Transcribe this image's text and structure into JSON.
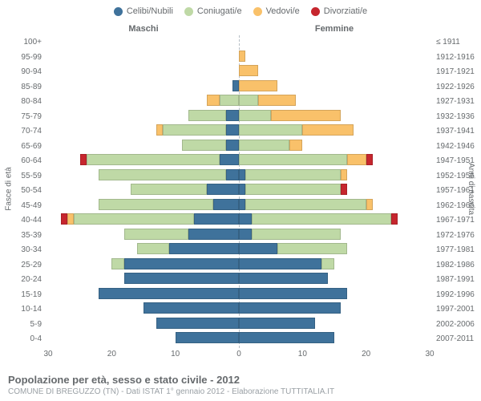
{
  "legend": {
    "items": [
      {
        "label": "Celibi/Nubili",
        "color": "#3f729b"
      },
      {
        "label": "Coniugati/e",
        "color": "#bfd9a6"
      },
      {
        "label": "Vedovi/e",
        "color": "#f9c16a"
      },
      {
        "label": "Divorziati/e",
        "color": "#c6262e"
      }
    ]
  },
  "headers": {
    "male": "Maschi",
    "female": "Femmine"
  },
  "axis_titles": {
    "left": "Fasce di età",
    "right": "Anni di nascita"
  },
  "axis_title_fontsize": 10,
  "x_axis": {
    "ticks": [
      30,
      20,
      10,
      0,
      10,
      20,
      30
    ],
    "max": 30
  },
  "label_color": "#666a6d",
  "label_fontsize": 10,
  "footer": {
    "title": "Popolazione per età, sesso e stato civile - 2012",
    "sub": "COMUNE DI BREGUZZO (TN) - Dati ISTAT 1° gennaio 2012 - Elaborazione TUTTITALIA.IT"
  },
  "colors": {
    "single": "#3f729b",
    "married": "#bfd9a6",
    "widowed": "#f9c16a",
    "divorced": "#c6262e",
    "grid": "#b7bfc6",
    "background": "#ffffff"
  },
  "bar_style": {
    "height_pct": 76,
    "border": "1px solid rgba(0,0,0,0.15)"
  },
  "rows": [
    {
      "age": "100+",
      "birth": "≤ 1911",
      "m": {
        "s": 0,
        "c": 0,
        "v": 0,
        "d": 0
      },
      "f": {
        "s": 0,
        "c": 0,
        "v": 0,
        "d": 0
      }
    },
    {
      "age": "95-99",
      "birth": "1912-1916",
      "m": {
        "s": 0,
        "c": 0,
        "v": 0,
        "d": 0
      },
      "f": {
        "s": 0,
        "c": 0,
        "v": 1,
        "d": 0
      }
    },
    {
      "age": "90-94",
      "birth": "1917-1921",
      "m": {
        "s": 0,
        "c": 0,
        "v": 0,
        "d": 0
      },
      "f": {
        "s": 0,
        "c": 0,
        "v": 3,
        "d": 0
      }
    },
    {
      "age": "85-89",
      "birth": "1922-1926",
      "m": {
        "s": 1,
        "c": 0,
        "v": 0,
        "d": 0
      },
      "f": {
        "s": 0,
        "c": 0,
        "v": 6,
        "d": 0
      }
    },
    {
      "age": "80-84",
      "birth": "1927-1931",
      "m": {
        "s": 0,
        "c": 3,
        "v": 2,
        "d": 0
      },
      "f": {
        "s": 0,
        "c": 3,
        "v": 6,
        "d": 0
      }
    },
    {
      "age": "75-79",
      "birth": "1932-1936",
      "m": {
        "s": 2,
        "c": 6,
        "v": 0,
        "d": 0
      },
      "f": {
        "s": 0,
        "c": 5,
        "v": 11,
        "d": 0
      }
    },
    {
      "age": "70-74",
      "birth": "1937-1941",
      "m": {
        "s": 2,
        "c": 10,
        "v": 1,
        "d": 0
      },
      "f": {
        "s": 0,
        "c": 10,
        "v": 8,
        "d": 0
      }
    },
    {
      "age": "65-69",
      "birth": "1942-1946",
      "m": {
        "s": 2,
        "c": 7,
        "v": 0,
        "d": 0
      },
      "f": {
        "s": 0,
        "c": 8,
        "v": 2,
        "d": 0
      }
    },
    {
      "age": "60-64",
      "birth": "1947-1951",
      "m": {
        "s": 3,
        "c": 21,
        "v": 0,
        "d": 1
      },
      "f": {
        "s": 0,
        "c": 17,
        "v": 3,
        "d": 1
      }
    },
    {
      "age": "55-59",
      "birth": "1952-1956",
      "m": {
        "s": 2,
        "c": 20,
        "v": 0,
        "d": 0
      },
      "f": {
        "s": 1,
        "c": 15,
        "v": 1,
        "d": 0
      }
    },
    {
      "age": "50-54",
      "birth": "1957-1961",
      "m": {
        "s": 5,
        "c": 12,
        "v": 0,
        "d": 0
      },
      "f": {
        "s": 1,
        "c": 15,
        "v": 0,
        "d": 1
      }
    },
    {
      "age": "45-49",
      "birth": "1962-1966",
      "m": {
        "s": 4,
        "c": 18,
        "v": 0,
        "d": 0
      },
      "f": {
        "s": 1,
        "c": 19,
        "v": 1,
        "d": 0
      }
    },
    {
      "age": "40-44",
      "birth": "1967-1971",
      "m": {
        "s": 7,
        "c": 19,
        "v": 1,
        "d": 1
      },
      "f": {
        "s": 2,
        "c": 22,
        "v": 0,
        "d": 1
      }
    },
    {
      "age": "35-39",
      "birth": "1972-1976",
      "m": {
        "s": 8,
        "c": 10,
        "v": 0,
        "d": 0
      },
      "f": {
        "s": 2,
        "c": 14,
        "v": 0,
        "d": 0
      }
    },
    {
      "age": "30-34",
      "birth": "1977-1981",
      "m": {
        "s": 11,
        "c": 5,
        "v": 0,
        "d": 0
      },
      "f": {
        "s": 6,
        "c": 11,
        "v": 0,
        "d": 0
      }
    },
    {
      "age": "25-29",
      "birth": "1982-1986",
      "m": {
        "s": 18,
        "c": 2,
        "v": 0,
        "d": 0
      },
      "f": {
        "s": 13,
        "c": 2,
        "v": 0,
        "d": 0
      }
    },
    {
      "age": "20-24",
      "birth": "1987-1991",
      "m": {
        "s": 18,
        "c": 0,
        "v": 0,
        "d": 0
      },
      "f": {
        "s": 14,
        "c": 0,
        "v": 0,
        "d": 0
      }
    },
    {
      "age": "15-19",
      "birth": "1992-1996",
      "m": {
        "s": 22,
        "c": 0,
        "v": 0,
        "d": 0
      },
      "f": {
        "s": 17,
        "c": 0,
        "v": 0,
        "d": 0
      }
    },
    {
      "age": "10-14",
      "birth": "1997-2001",
      "m": {
        "s": 15,
        "c": 0,
        "v": 0,
        "d": 0
      },
      "f": {
        "s": 16,
        "c": 0,
        "v": 0,
        "d": 0
      }
    },
    {
      "age": "5-9",
      "birth": "2002-2006",
      "m": {
        "s": 13,
        "c": 0,
        "v": 0,
        "d": 0
      },
      "f": {
        "s": 12,
        "c": 0,
        "v": 0,
        "d": 0
      }
    },
    {
      "age": "0-4",
      "birth": "2007-2011",
      "m": {
        "s": 10,
        "c": 0,
        "v": 0,
        "d": 0
      },
      "f": {
        "s": 15,
        "c": 0,
        "v": 0,
        "d": 0
      }
    }
  ]
}
